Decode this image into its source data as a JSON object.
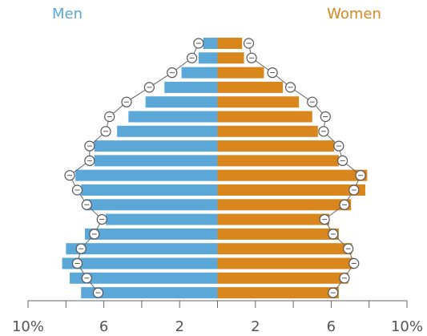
{
  "chart_data": {
    "type": "bar",
    "series": [
      {
        "name": "Men",
        "color": "#5aa7d8",
        "side": "left",
        "values": [
          0.76,
          1.0,
          1.9,
          2.8,
          3.8,
          4.7,
          5.3,
          6.5,
          6.5,
          7.5,
          7.2,
          7.0,
          5.9,
          7.0,
          8.0,
          8.2,
          7.8,
          7.2
        ]
      },
      {
        "name": "Women",
        "color": "#d9861c",
        "side": "right",
        "values": [
          1.3,
          1.4,
          2.45,
          3.45,
          4.3,
          5.0,
          5.3,
          6.15,
          6.4,
          7.9,
          7.8,
          7.05,
          5.9,
          6.4,
          7.1,
          7.2,
          6.9,
          6.4
        ]
      }
    ],
    "markers": [
      {
        "side": "left",
        "values": [
          1.0,
          1.35,
          2.4,
          3.6,
          4.8,
          5.7,
          5.9,
          6.75,
          6.75,
          7.8,
          7.4,
          6.9,
          6.1,
          6.5,
          7.2,
          7.4,
          6.9,
          6.3
        ]
      },
      {
        "side": "right",
        "values": [
          1.65,
          1.8,
          2.9,
          3.85,
          5.0,
          5.7,
          5.6,
          6.4,
          6.6,
          7.55,
          7.2,
          6.7,
          5.65,
          6.1,
          6.9,
          7.2,
          6.7,
          6.1
        ]
      }
    ],
    "xlim": [
      -10,
      10
    ],
    "xticks": [
      {
        "value": -10,
        "label": "10%"
      },
      {
        "value": -6,
        "label": "6"
      },
      {
        "value": -2,
        "label": "2"
      },
      {
        "value": 2,
        "label": "2"
      },
      {
        "value": 6,
        "label": "6"
      },
      {
        "value": 10,
        "label": "10%"
      }
    ],
    "xticks_minor": [
      -8,
      -4,
      0,
      4,
      8
    ]
  }
}
